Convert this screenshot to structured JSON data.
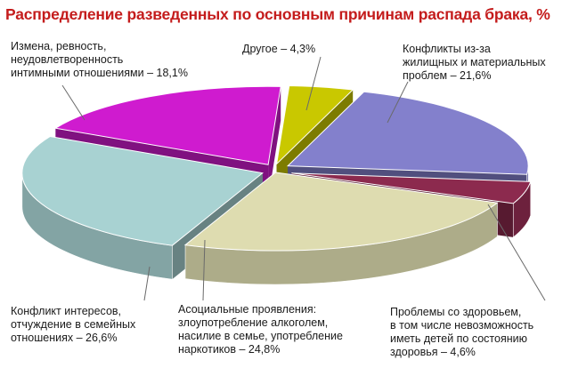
{
  "chart_data": {
    "type": "pie",
    "title": "Распределение разведенных по основным причинам распада брака, %",
    "slices": [
      {
        "label_lines": [
          "Другое – 4,3%"
        ],
        "value": 4.3,
        "color": "#c9c800"
      },
      {
        "label_lines": [
          "Конфликты из-за",
          "жилищных и материальных",
          "проблем – 21,6%"
        ],
        "value": 21.6,
        "color": "#8380cc"
      },
      {
        "label_lines": [
          "Проблемы со здоровьем,",
          "в том числе невозможность",
          "иметь детей по состоянию",
          "здоровья – 4,6%"
        ],
        "value": 4.6,
        "color": "#8c2a4e"
      },
      {
        "label_lines": [
          "Асоциальные проявления:",
          "злоупотребление алкоголем,",
          "насилие в семье, употребление",
          "наркотиков – 24,8%"
        ],
        "value": 24.8,
        "color": "#dedcb0"
      },
      {
        "label_lines": [
          "Конфликт интересов,",
          "отчуждение в семейных",
          "отношениях – 26,6%"
        ],
        "value": 26.6,
        "color": "#a8d2d2"
      },
      {
        "label_lines": [
          "Измена, ревность,",
          "неудовлетворенность",
          "интимными отношениями – 18,1%"
        ],
        "value": 18.1,
        "color": "#cf1bcf"
      }
    ]
  }
}
